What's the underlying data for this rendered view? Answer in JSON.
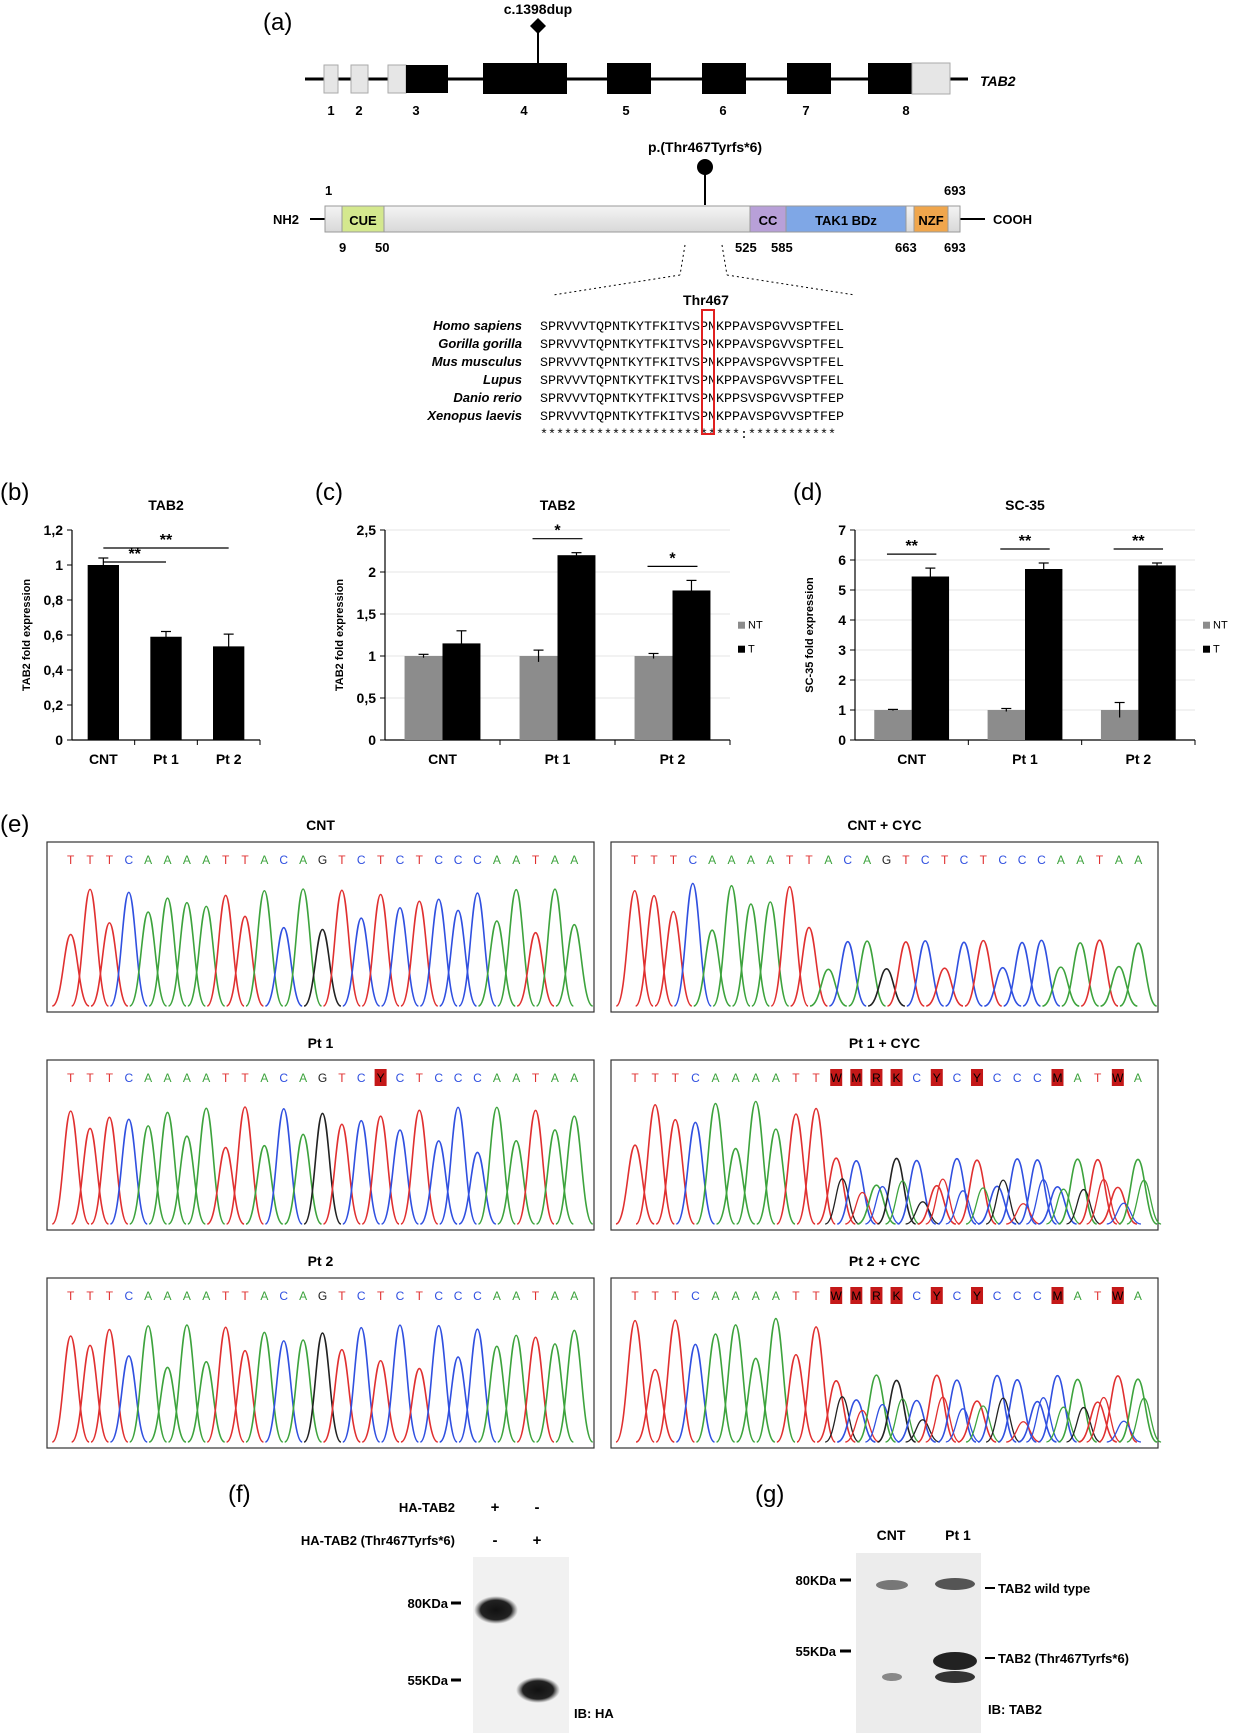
{
  "panel_a": {
    "label": "(a)",
    "mutation_dna": "c.1398dup",
    "gene": "TAB2",
    "exons": [
      "1",
      "2",
      "3",
      "4",
      "5",
      "6",
      "7",
      "8"
    ],
    "mutation_protein": "p.(Thr467Tyrfs*6)",
    "start_pos": "1",
    "end_pos": "693",
    "nh2": "NH2",
    "cooh": "COOH",
    "domains": [
      {
        "name": "CUE",
        "start": "9",
        "end": "50",
        "color": "#d4e88e"
      },
      {
        "name": "CC",
        "start": "525",
        "end": "585",
        "color": "#b8a0d8"
      },
      {
        "name": "TAK1 BDz",
        "start": "",
        "end": "663",
        "color": "#7fa7e6"
      },
      {
        "name": "NZF",
        "start": "",
        "end": "693",
        "color": "#f0a64c"
      }
    ],
    "alignment_title": "Thr467",
    "alignment": [
      {
        "species": "Homo sapiens",
        "seq": "SPRVVVTQPNTKYTFKITVSPNKPPAVSPGVVSPTFEL"
      },
      {
        "species": "Gorilla gorilla",
        "seq": "SPRVVVTQPNTKYTFKITVSPNKPPAVSPGVVSPTFEL"
      },
      {
        "species": "Mus musculus",
        "seq": "SPRVVVTQPNTKYTFKITVSPNKPPAVSPGVVSPTFEL"
      },
      {
        "species": "Lupus",
        "seq": "SPRVVVTQPNTKYTFKITVSPNKPPAVSPGVVSPTFEL"
      },
      {
        "species": "Danio rerio",
        "seq": "SPRVVVTQPNTKYTFKITVSPNKPPSVSPGVVSPTFEP"
      },
      {
        "species": "Xenopus laevis",
        "seq": "SPRVVVTQPNTKYTFKITVSPNKPPAVSPGVVSPTFEP"
      }
    ],
    "conservation": "*************************:***********"
  },
  "chart_data": [
    {
      "type": "bar",
      "panel": "(b)",
      "title": "TAB2",
      "ylabel": "TAB2 fold expression",
      "categories": [
        "CNT",
        "Pt 1",
        "Pt 2"
      ],
      "values": [
        1.0,
        0.59,
        0.535
      ],
      "errors": [
        0.04,
        0.03,
        0.07
      ],
      "ylim": [
        0,
        1.2
      ],
      "yticks": [
        "0",
        "0,2",
        "0,4",
        "0,6",
        "0,8",
        "1",
        "1,2"
      ],
      "significance": [
        {
          "pair": [
            "CNT",
            "Pt 1"
          ],
          "label": "**"
        },
        {
          "pair": [
            "CNT",
            "Pt 2"
          ],
          "label": "**"
        }
      ]
    },
    {
      "type": "bar",
      "panel": "(c)",
      "title": "TAB2",
      "ylabel": "TAB2 fold expression",
      "categories": [
        "CNT",
        "Pt 1",
        "Pt 2"
      ],
      "series": [
        {
          "name": "NT",
          "values": [
            1.0,
            1.0,
            1.0
          ],
          "errors": [
            0.02,
            0.07,
            0.03
          ],
          "color": "#8c8c8c"
        },
        {
          "name": "T",
          "values": [
            1.15,
            2.2,
            1.78
          ],
          "errors": [
            0.15,
            0.03,
            0.12
          ],
          "color": "#000000"
        }
      ],
      "ylim": [
        0,
        2.5
      ],
      "yticks": [
        "0",
        "0,5",
        "1",
        "1,5",
        "2",
        "2,5"
      ],
      "grid": true,
      "legend": "right",
      "significance": [
        {
          "category": "Pt 1",
          "label": "*"
        },
        {
          "category": "Pt 2",
          "label": "*"
        }
      ]
    },
    {
      "type": "bar",
      "panel": "(d)",
      "title": "SC-35",
      "ylabel": "SC-35 fold expression",
      "categories": [
        "CNT",
        "Pt 1",
        "Pt 2"
      ],
      "series": [
        {
          "name": "NT",
          "values": [
            1.0,
            1.0,
            1.0
          ],
          "errors": [
            0.02,
            0.05,
            0.25
          ],
          "color": "#8c8c8c"
        },
        {
          "name": "T",
          "values": [
            5.45,
            5.7,
            5.82
          ],
          "errors": [
            0.28,
            0.2,
            0.08
          ],
          "color": "#000000"
        }
      ],
      "ylim": [
        0,
        7
      ],
      "yticks": [
        "0",
        "1",
        "2",
        "3",
        "4",
        "5",
        "6",
        "7"
      ],
      "grid": true,
      "legend": "right",
      "significance": [
        {
          "category": "CNT",
          "label": "**"
        },
        {
          "category": "Pt 1",
          "label": "**"
        },
        {
          "category": "Pt 2",
          "label": "**"
        }
      ]
    }
  ],
  "panel_e": {
    "label": "(e)",
    "traces": [
      {
        "title": "CNT",
        "bases": [
          "T",
          "T",
          "T",
          "C",
          "A",
          "A",
          "A",
          "A",
          "T",
          "T",
          "A",
          "C",
          "A",
          "G",
          "T",
          "C",
          "T",
          "C",
          "T",
          "C",
          "C",
          "C",
          "A",
          "A",
          "T",
          "A",
          "A"
        ],
        "flagged": [],
        "mixed": false
      },
      {
        "title": "CNT + CYC",
        "bases": [
          "T",
          "T",
          "T",
          "C",
          "A",
          "A",
          "A",
          "A",
          "T",
          "T",
          "A",
          "C",
          "A",
          "G",
          "T",
          "C",
          "T",
          "C",
          "T",
          "C",
          "C",
          "C",
          "A",
          "A",
          "T",
          "A",
          "A"
        ],
        "flagged": [],
        "mixed": false
      },
      {
        "title": "Pt 1",
        "bases": [
          "T",
          "T",
          "T",
          "C",
          "A",
          "A",
          "A",
          "A",
          "T",
          "T",
          "A",
          "C",
          "A",
          "G",
          "T",
          "C",
          "Y",
          "C",
          "T",
          "C",
          "C",
          "C",
          "A",
          "A",
          "T",
          "A",
          "A"
        ],
        "flagged": [
          16
        ],
        "mixed": false
      },
      {
        "title": "Pt 1 + CYC",
        "bases": [
          "T",
          "T",
          "T",
          "C",
          "A",
          "A",
          "A",
          "A",
          "T",
          "T",
          "W",
          "M",
          "R",
          "K",
          "C",
          "Y",
          "C",
          "Y",
          "C",
          "C",
          "C",
          "M",
          "A",
          "T",
          "W",
          "A"
        ],
        "flagged": [
          10,
          11,
          12,
          13,
          15,
          17,
          21,
          24
        ],
        "mixed": true
      },
      {
        "title": "Pt 2",
        "bases": [
          "T",
          "T",
          "T",
          "C",
          "A",
          "A",
          "A",
          "A",
          "T",
          "T",
          "A",
          "C",
          "A",
          "G",
          "T",
          "C",
          "T",
          "C",
          "T",
          "C",
          "C",
          "C",
          "A",
          "A",
          "T",
          "A",
          "A"
        ],
        "flagged": [],
        "mixed": false
      },
      {
        "title": "Pt 2 + CYC",
        "bases": [
          "T",
          "T",
          "T",
          "C",
          "A",
          "A",
          "A",
          "A",
          "T",
          "T",
          "W",
          "M",
          "R",
          "K",
          "C",
          "Y",
          "C",
          "Y",
          "C",
          "C",
          "C",
          "M",
          "A",
          "T",
          "W",
          "A"
        ],
        "flagged": [
          10,
          11,
          12,
          13,
          15,
          17,
          21,
          24
        ],
        "mixed": true
      }
    ]
  },
  "panel_f": {
    "label": "(f)",
    "row1_label": "HA-TAB2",
    "row1_signs": [
      "+",
      "-"
    ],
    "row2_label": "HA-TAB2 (Thr467Tyrfs*6)",
    "row2_signs": [
      "-",
      "+"
    ],
    "marker_80": "80KDa",
    "marker_55": "55KDa",
    "ib": "IB: HA"
  },
  "panel_g": {
    "label": "(g)",
    "lanes": [
      "CNT",
      "Pt 1"
    ],
    "marker_80": "80KDa",
    "marker_55": "55KDa",
    "band_wt": "TAB2 wild type",
    "band_mut": "TAB2 (Thr467Tyrfs*6)",
    "ib": "IB: TAB2"
  }
}
